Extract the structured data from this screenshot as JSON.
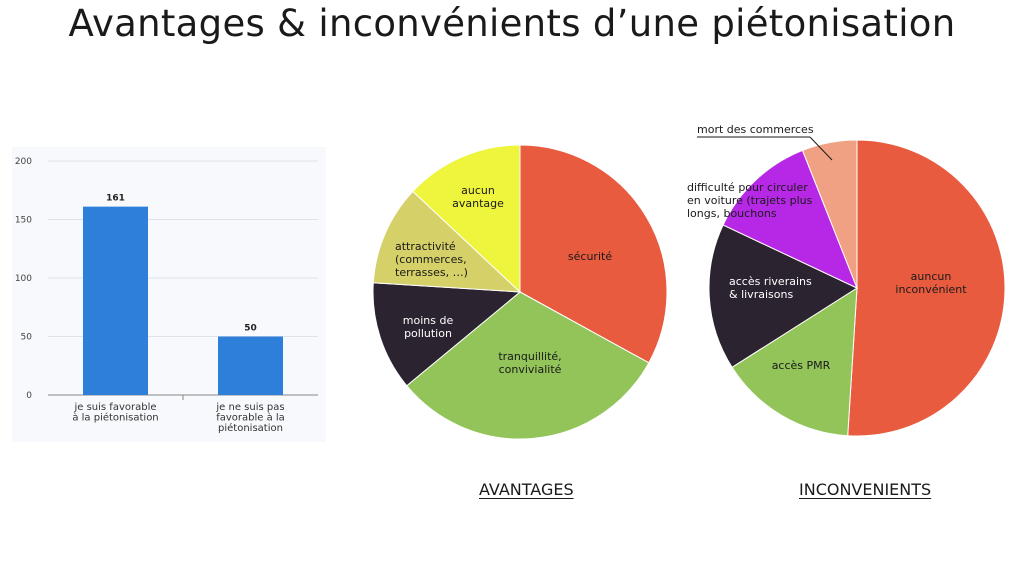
{
  "page": {
    "title": "Avantages & inconvénients d’une piétonisation"
  },
  "chart_data": [
    {
      "type": "bar",
      "title": "",
      "xlabel": "",
      "ylabel": "",
      "categories": [
        [
          "je suis favorable",
          "à la piétonisation"
        ],
        [
          "je ne suis pas",
          "favorable à la",
          "piétonisation"
        ]
      ],
      "values": [
        161,
        50
      ],
      "data_labels": [
        "161",
        "50"
      ],
      "ylim": [
        0,
        200
      ],
      "yticks": [
        0,
        50,
        100,
        150,
        200
      ],
      "grid": true,
      "colors": {
        "bar": "#2e7fd9",
        "background": "#f7f9fc",
        "grid": "#dfe3e8"
      }
    },
    {
      "type": "pie",
      "title": "AVANTAGES",
      "slices": [
        {
          "label": [
            "sécurité"
          ],
          "value": 33,
          "color": "#e95b3e"
        },
        {
          "label": [
            "tranquillité,",
            "convivialité"
          ],
          "value": 31,
          "color": "#92c45a"
        },
        {
          "label": [
            "moins de",
            "pollution"
          ],
          "value": 12,
          "color": "#2c2330"
        },
        {
          "label": [
            "attractivité",
            "(commerces,",
            "terrasses, …)"
          ],
          "value": 11,
          "color": "#d5d068"
        },
        {
          "label": [
            "aucun",
            "avantage"
          ],
          "value": 13,
          "color": "#eef53c"
        }
      ]
    },
    {
      "type": "pie",
      "title": "INCONVENIENTS",
      "slices": [
        {
          "label": [
            "auncun",
            "inconvénient"
          ],
          "value": 51,
          "color": "#e95b3e"
        },
        {
          "label": [
            "accès PMR"
          ],
          "value": 15,
          "color": "#92c45a"
        },
        {
          "label": [
            "accès riverains",
            "& livraisons"
          ],
          "value": 16,
          "color": "#2c2330"
        },
        {
          "label": [
            "difficulté pour circuler",
            "en voiture (trajets plus",
            "longs, bouchons"
          ],
          "value": 12,
          "color": "#b727e6"
        },
        {
          "label": [
            "mort des commerces"
          ],
          "value": 6,
          "color": "#f0a083"
        }
      ]
    }
  ]
}
